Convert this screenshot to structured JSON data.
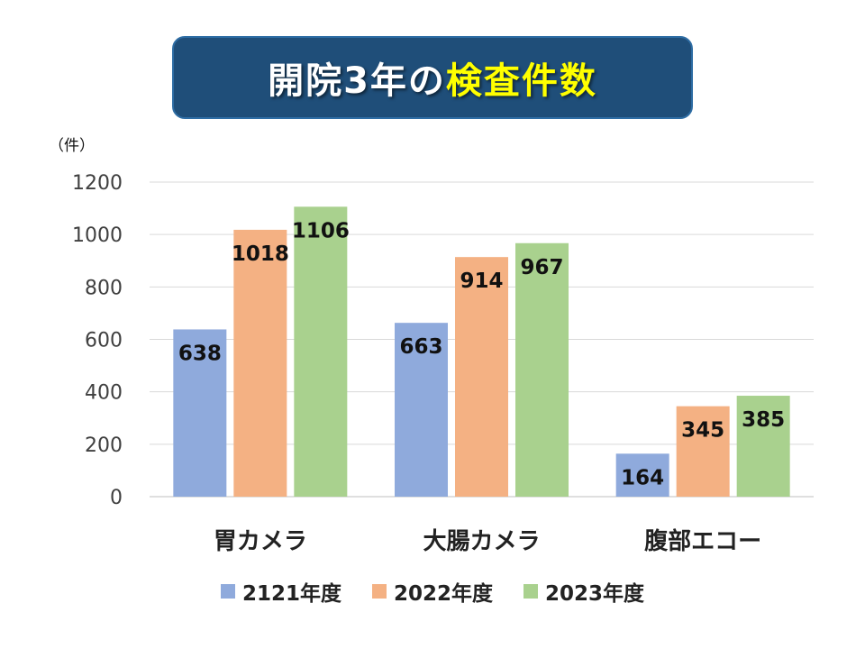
{
  "title": {
    "main": "開院3年の",
    "accent": "検査件数"
  },
  "unit_label": "（件）",
  "colors": {
    "title_bg": "#1f4e79",
    "title_text": "#ffffff",
    "title_accent": "#ffff00"
  },
  "chart_data": {
    "type": "bar",
    "categories": [
      "胃カメラ",
      "大腸カメラ",
      "腹部エコー"
    ],
    "series": [
      {
        "name": "2121年度",
        "values": [
          638,
          663,
          164
        ],
        "color": "#8faadc"
      },
      {
        "name": "2022年度",
        "values": [
          1018,
          914,
          345
        ],
        "color": "#f4b183"
      },
      {
        "name": "2023年度",
        "values": [
          1106,
          967,
          385
        ],
        "color": "#a9d18e"
      }
    ],
    "ylim": [
      0,
      1200
    ],
    "yticks": [
      "0",
      "200",
      "400",
      "600",
      "800",
      "1000",
      "1200"
    ],
    "ylabel": "（件）",
    "grid": true,
    "legend_position": "bottom"
  }
}
